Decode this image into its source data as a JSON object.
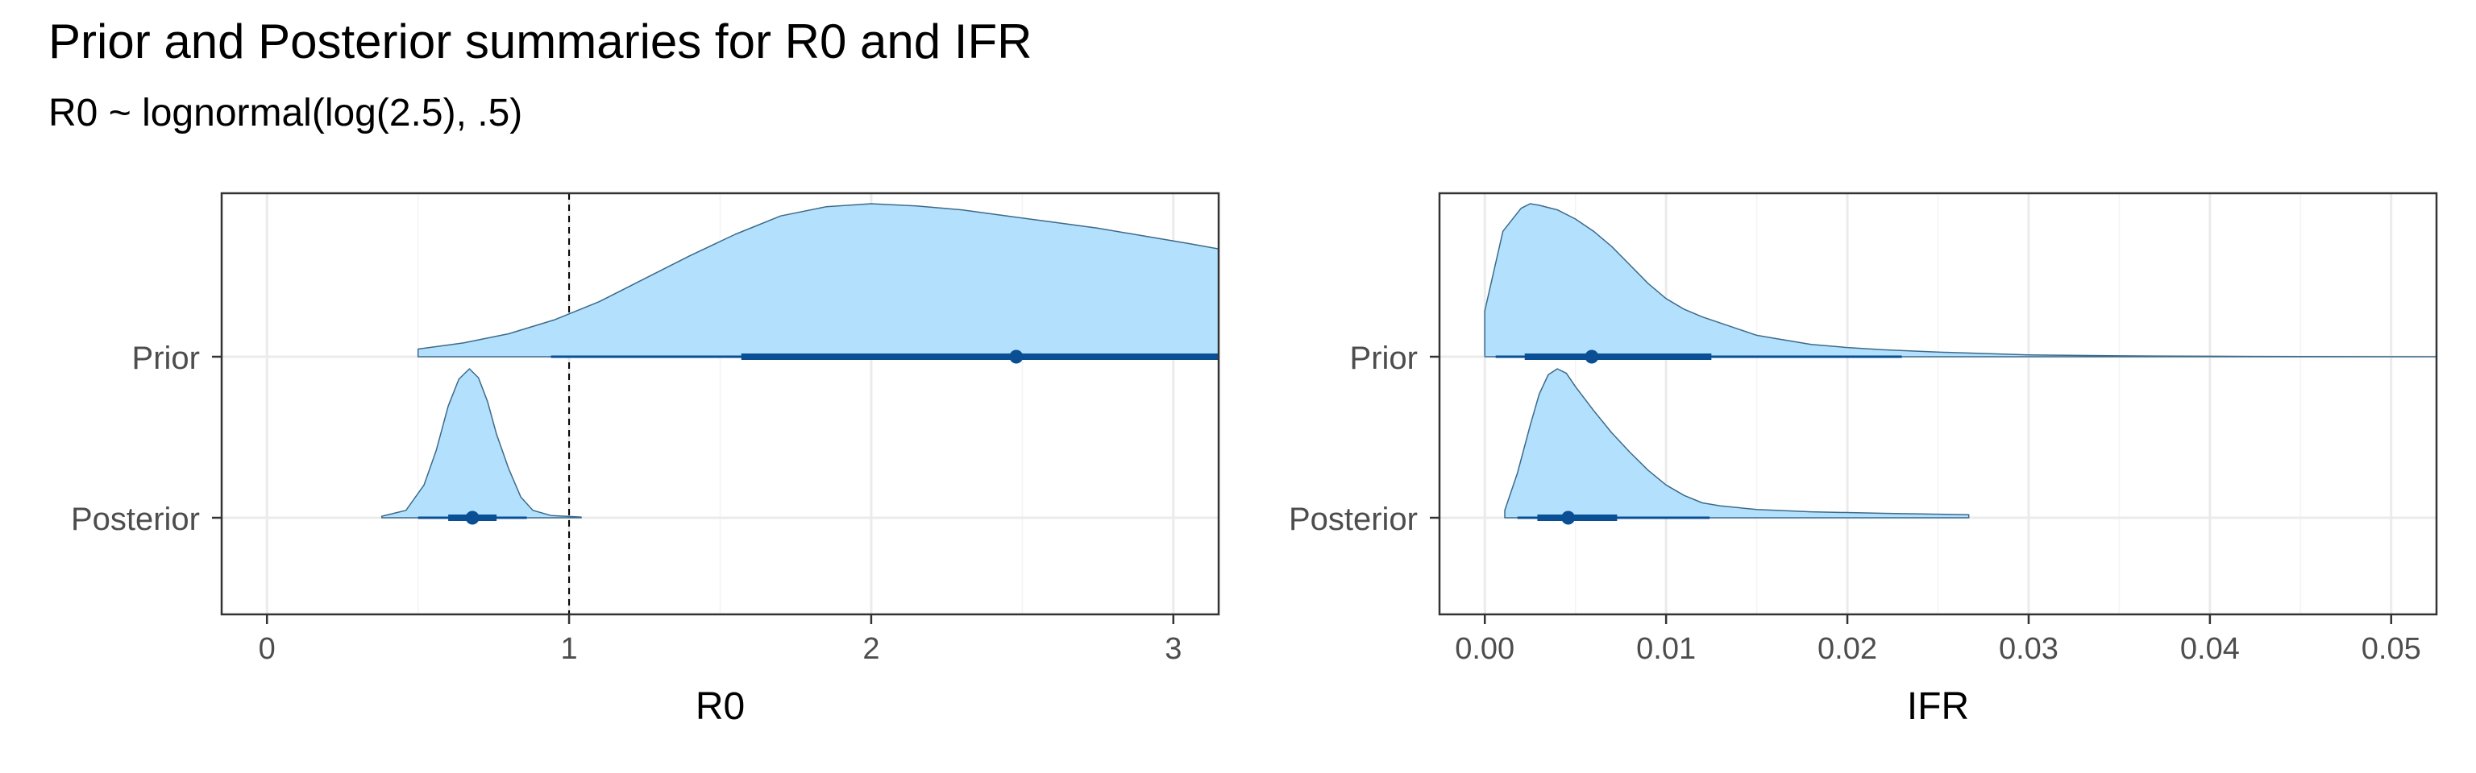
{
  "title": "Prior and Posterior summaries for R0 and IFR",
  "subtitle": "R0 ~ lognormal(log(2.5), .5)",
  "colors": {
    "fill": "#b3e0fd",
    "outline": "#3c6a8a",
    "interval": "#0a4f94",
    "grid": "#ebebeb",
    "reference": "#000000",
    "panel_border": "#333333"
  },
  "chart_data": [
    {
      "type": "area",
      "subtype": "halfeye",
      "xlabel": "R0",
      "ylabel": "",
      "xlim": [
        -0.15,
        3.15
      ],
      "xticks": [
        0,
        1,
        2,
        3
      ],
      "xtick_labels": [
        "0",
        "1",
        "2",
        "3"
      ],
      "categories": [
        "Prior",
        "Posterior"
      ],
      "reference_line": {
        "x": 1,
        "style": "dashed"
      },
      "grid": true,
      "series": [
        {
          "name": "Prior",
          "density": [
            [
              0.5,
              0.05
            ],
            [
              0.65,
              0.09
            ],
            [
              0.8,
              0.15
            ],
            [
              0.95,
              0.24
            ],
            [
              1.1,
              0.36
            ],
            [
              1.25,
              0.51
            ],
            [
              1.4,
              0.66
            ],
            [
              1.55,
              0.8
            ],
            [
              1.7,
              0.92
            ],
            [
              1.85,
              0.98
            ],
            [
              2.0,
              1.0
            ],
            [
              2.15,
              0.985
            ],
            [
              2.3,
              0.96
            ],
            [
              2.45,
              0.92
            ],
            [
              2.6,
              0.88
            ],
            [
              2.75,
              0.84
            ],
            [
              2.9,
              0.79
            ],
            [
              3.05,
              0.74
            ],
            [
              3.15,
              0.705
            ]
          ],
          "point": 2.48,
          "interval_66": [
            1.57,
            3.15
          ],
          "interval_95": [
            0.94,
            3.15
          ]
        },
        {
          "name": "Posterior",
          "density": [
            [
              0.38,
              0.01
            ],
            [
              0.46,
              0.05
            ],
            [
              0.52,
              0.22
            ],
            [
              0.56,
              0.45
            ],
            [
              0.6,
              0.75
            ],
            [
              0.635,
              0.93
            ],
            [
              0.67,
              1.0
            ],
            [
              0.7,
              0.94
            ],
            [
              0.73,
              0.78
            ],
            [
              0.76,
              0.56
            ],
            [
              0.8,
              0.33
            ],
            [
              0.84,
              0.14
            ],
            [
              0.88,
              0.05
            ],
            [
              0.94,
              0.015
            ],
            [
              1.04,
              0.005
            ]
          ],
          "point": 0.68,
          "interval_66": [
            0.6,
            0.76
          ],
          "interval_95": [
            0.5,
            0.86
          ]
        }
      ]
    },
    {
      "type": "area",
      "subtype": "halfeye",
      "xlabel": "IFR",
      "ylabel": "",
      "xlim": [
        -0.0025,
        0.0525
      ],
      "xticks": [
        0.0,
        0.01,
        0.02,
        0.03,
        0.04,
        0.05
      ],
      "xtick_labels": [
        "0.00",
        "0.01",
        "0.02",
        "0.03",
        "0.04",
        "0.05"
      ],
      "categories": [
        "Prior",
        "Posterior"
      ],
      "grid": true,
      "series": [
        {
          "name": "Prior",
          "density": [
            [
              0.0,
              0.3
            ],
            [
              0.001,
              0.82
            ],
            [
              0.002,
              0.97
            ],
            [
              0.0025,
              1.0
            ],
            [
              0.003,
              0.99
            ],
            [
              0.004,
              0.96
            ],
            [
              0.005,
              0.9
            ],
            [
              0.006,
              0.82
            ],
            [
              0.007,
              0.72
            ],
            [
              0.008,
              0.6
            ],
            [
              0.009,
              0.48
            ],
            [
              0.01,
              0.38
            ],
            [
              0.011,
              0.31
            ],
            [
              0.012,
              0.26
            ],
            [
              0.013,
              0.22
            ],
            [
              0.014,
              0.18
            ],
            [
              0.015,
              0.14
            ],
            [
              0.016,
              0.12
            ],
            [
              0.018,
              0.08
            ],
            [
              0.02,
              0.06
            ],
            [
              0.022,
              0.045
            ],
            [
              0.025,
              0.03
            ],
            [
              0.03,
              0.012
            ],
            [
              0.035,
              0.006
            ],
            [
              0.04,
              0.003
            ],
            [
              0.045,
              0.001
            ],
            [
              0.0525,
              0.0
            ]
          ],
          "point": 0.0059,
          "interval_66": [
            0.0022,
            0.0125
          ],
          "interval_95": [
            0.0006,
            0.023
          ]
        },
        {
          "name": "Posterior",
          "density": [
            [
              0.0011,
              0.05
            ],
            [
              0.0018,
              0.3
            ],
            [
              0.0025,
              0.62
            ],
            [
              0.003,
              0.83
            ],
            [
              0.0035,
              0.96
            ],
            [
              0.004,
              1.0
            ],
            [
              0.0045,
              0.97
            ],
            [
              0.005,
              0.88
            ],
            [
              0.006,
              0.72
            ],
            [
              0.007,
              0.57
            ],
            [
              0.008,
              0.44
            ],
            [
              0.009,
              0.32
            ],
            [
              0.01,
              0.22
            ],
            [
              0.011,
              0.15
            ],
            [
              0.012,
              0.1
            ],
            [
              0.013,
              0.08
            ],
            [
              0.015,
              0.055
            ],
            [
              0.018,
              0.04
            ],
            [
              0.022,
              0.03
            ],
            [
              0.0267,
              0.02
            ]
          ],
          "point": 0.0046,
          "interval_66": [
            0.0029,
            0.0073
          ],
          "interval_95": [
            0.0018,
            0.0124
          ]
        }
      ]
    }
  ]
}
